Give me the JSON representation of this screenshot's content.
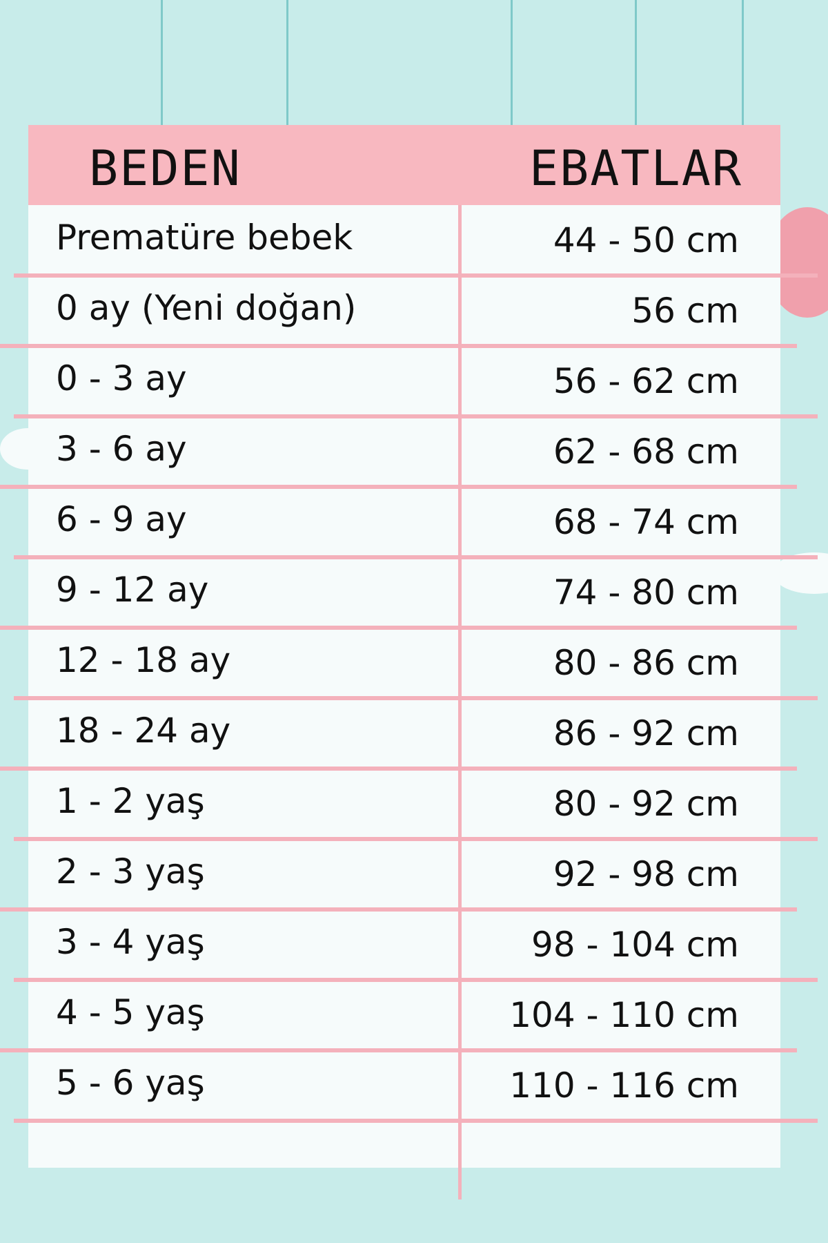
{
  "header": {
    "size_label": "BEDEN",
    "dimensions_label": "EBATLAR"
  },
  "rows": [
    {
      "size": "Prematüre bebek",
      "dimension": "44 - 50 cm"
    },
    {
      "size": "0 ay (Yeni doğan)",
      "dimension": "56 cm"
    },
    {
      "size": "0 - 3 ay",
      "dimension": "56 - 62 cm"
    },
    {
      "size": "3 - 6 ay",
      "dimension": "62 - 68 cm"
    },
    {
      "size": "6 - 9 ay",
      "dimension": "68 - 74 cm"
    },
    {
      "size": "9 - 12 ay",
      "dimension": "74 - 80 cm"
    },
    {
      "size": "12 - 18 ay",
      "dimension": "80 - 86 cm"
    },
    {
      "size": "18 - 24 ay",
      "dimension": "86 - 92 cm"
    },
    {
      "size": "1 - 2 yaş",
      "dimension": "80 - 92 cm"
    },
    {
      "size": "2 - 3 yaş",
      "dimension": "92 - 98 cm"
    },
    {
      "size": "3 - 4 yaş",
      "dimension": "98 - 104 cm"
    },
    {
      "size": "4 - 5 yaş",
      "dimension": "104 - 110 cm"
    },
    {
      "size": "5 - 6 yaş",
      "dimension": "110 - 116 cm"
    }
  ],
  "colors": {
    "background": "#c8ecea",
    "header": "#f8b8c0",
    "lines": "#f4b1bb"
  }
}
